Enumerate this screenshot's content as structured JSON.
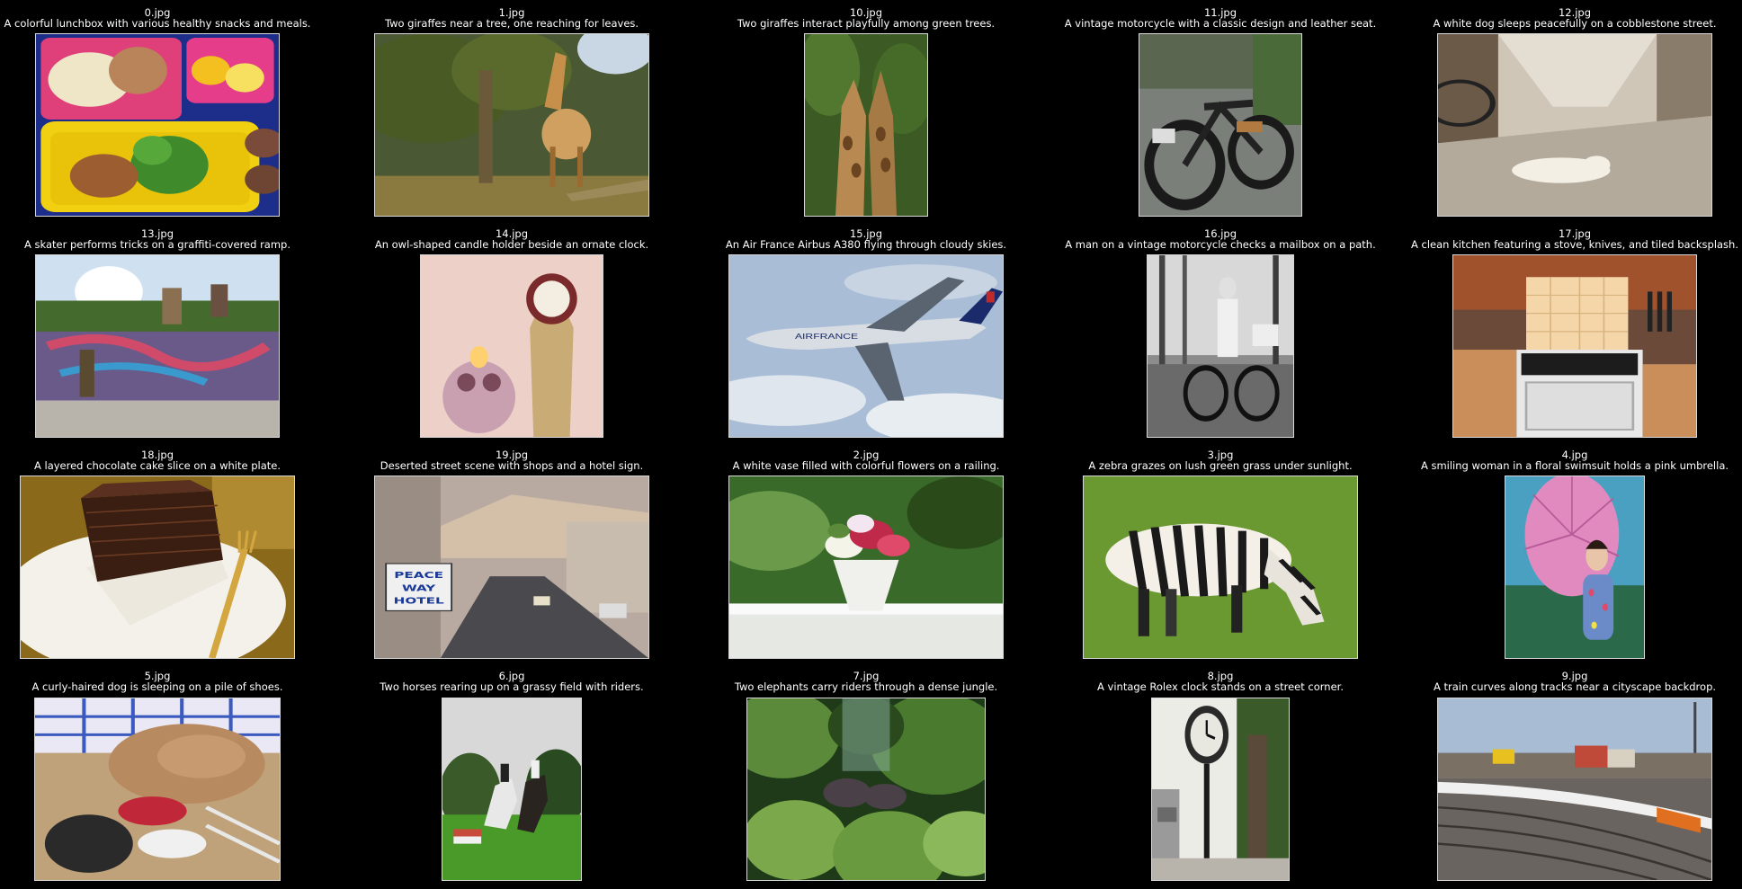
{
  "items": [
    {
      "file": "0.jpg",
      "caption": "A colorful lunchbox with various healthy snacks and meals."
    },
    {
      "file": "1.jpg",
      "caption": "Two giraffes near a tree, one reaching for leaves."
    },
    {
      "file": "10.jpg",
      "caption": "Two giraffes interact playfully among green trees."
    },
    {
      "file": "11.jpg",
      "caption": "A vintage motorcycle with a classic design and leather seat."
    },
    {
      "file": "12.jpg",
      "caption": "A white dog sleeps peacefully on a cobblestone street."
    },
    {
      "file": "13.jpg",
      "caption": "A skater performs tricks on a graffiti-covered ramp."
    },
    {
      "file": "14.jpg",
      "caption": "An owl-shaped candle holder beside an ornate clock."
    },
    {
      "file": "15.jpg",
      "caption": "An Air France Airbus A380 flying through cloudy skies."
    },
    {
      "file": "16.jpg",
      "caption": "A man on a vintage motorcycle checks a mailbox on a path."
    },
    {
      "file": "17.jpg",
      "caption": "A clean kitchen featuring a stove, knives, and tiled backsplash."
    },
    {
      "file": "18.jpg",
      "caption": "A layered chocolate cake slice on a white plate."
    },
    {
      "file": "19.jpg",
      "caption": "Deserted street scene with shops and a hotel sign."
    },
    {
      "file": "2.jpg",
      "caption": "A white vase filled with colorful flowers on a railing."
    },
    {
      "file": "3.jpg",
      "caption": "A zebra grazes on lush green grass under sunlight."
    },
    {
      "file": "4.jpg",
      "caption": "A smiling woman in a floral swimsuit holds a pink umbrella."
    },
    {
      "file": "5.jpg",
      "caption": "A curly-haired dog is sleeping on a pile of shoes."
    },
    {
      "file": "6.jpg",
      "caption": "Two horses rearing up on a grassy field with riders."
    },
    {
      "file": "7.jpg",
      "caption": "Two elephants carry riders through a dense jungle."
    },
    {
      "file": "8.jpg",
      "caption": "A vintage Rolex clock stands on a street corner."
    },
    {
      "file": "9.jpg",
      "caption": "A train curves along tracks near a cityscape backdrop."
    }
  ],
  "photo_text": {
    "hotel_sign": [
      "PEACE",
      "WAY",
      "HOTEL"
    ],
    "plane_livery": "AIRFRANCE"
  }
}
